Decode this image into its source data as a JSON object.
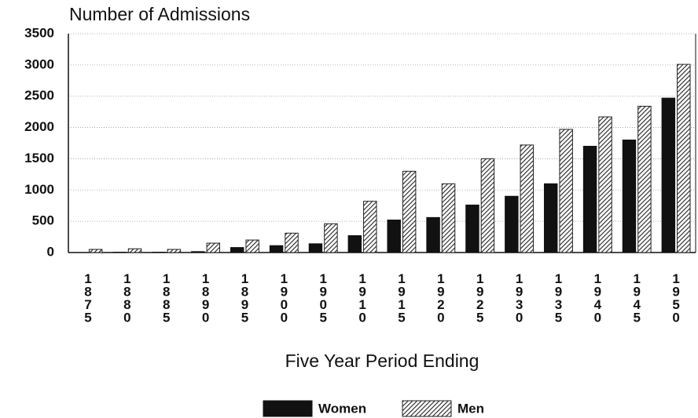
{
  "chart_data": {
    "type": "bar",
    "title": "Number of Admissions",
    "x_label": "Five Year Period Ending",
    "categories": [
      "1875",
      "1880",
      "1885",
      "1890",
      "1895",
      "1900",
      "1905",
      "1910",
      "1915",
      "1920",
      "1925",
      "1930",
      "1935",
      "1940",
      "1945",
      "1950"
    ],
    "series": [
      {
        "name": "Women",
        "color": "#111111",
        "hatch": false,
        "values": [
          0,
          5,
          5,
          15,
          80,
          110,
          140,
          270,
          520,
          560,
          760,
          900,
          1100,
          1700,
          1800,
          2470
        ]
      },
      {
        "name": "Men",
        "color": "#222222",
        "hatch": true,
        "values": [
          50,
          60,
          50,
          150,
          200,
          310,
          460,
          820,
          1300,
          1100,
          1500,
          1720,
          1970,
          2170,
          2340,
          3010
        ]
      }
    ],
    "ylim": [
      0,
      3500
    ],
    "yticks": [
      0,
      500,
      1000,
      1500,
      2000,
      2500,
      3000,
      3500
    ],
    "grid": true,
    "legend": "bottom"
  }
}
